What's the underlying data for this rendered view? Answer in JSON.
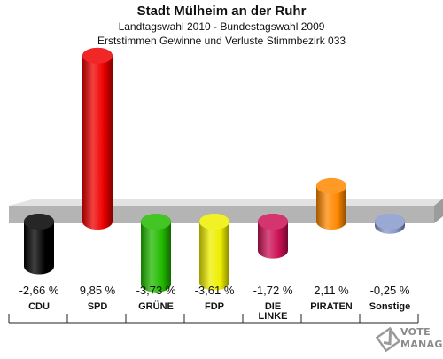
{
  "header": {
    "title": "Stadt Mülheim an der Ruhr",
    "subtitle": "Landtagswahl 2010 - Bundestagswahl 2009",
    "subtitle2": "Erststimmen Gewinne und Verluste Stimmbezirk 033"
  },
  "logo": {
    "line1": "VOTE",
    "line2": "MANAGER",
    "icon": "ballot-check-icon"
  },
  "chart_data": {
    "type": "bar",
    "categories": [
      "CDU",
      "SPD",
      "GRÜNE",
      "FDP",
      "DIE LINKE",
      "PIRATEN",
      "Sonstige"
    ],
    "category_lines": [
      [
        "CDU"
      ],
      [
        "SPD"
      ],
      [
        "GRÜNE"
      ],
      [
        "FDP"
      ],
      [
        "DIE",
        "LINKE"
      ],
      [
        "PIRATEN"
      ],
      [
        "Sonstige"
      ]
    ],
    "values": [
      -2.66,
      9.85,
      -3.73,
      -3.61,
      -1.72,
      2.11,
      -0.25
    ],
    "value_labels": [
      "-2,66 %",
      "9,85 %",
      "-3,73 %",
      "-3,61 %",
      "-1,72 %",
      "2,11 %",
      "-0,25 %"
    ],
    "colors": [
      "#000000",
      "#ee0000",
      "#22bb00",
      "#eeee00",
      "#cc1155",
      "#ff8800",
      "#8899cc"
    ],
    "grid": false,
    "legend": "none"
  }
}
